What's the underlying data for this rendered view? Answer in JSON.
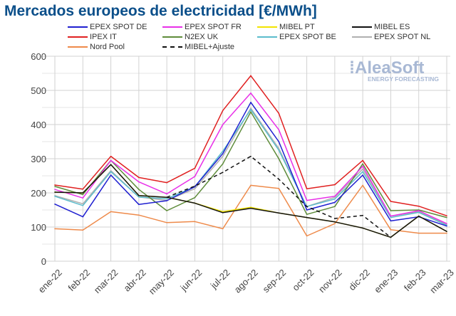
{
  "chart_data": {
    "type": "line",
    "title": "Mercados europeos de electricidad [€/MWh]",
    "xlabel": "",
    "ylabel": "",
    "ylim": [
      0,
      600
    ],
    "yticks": [
      0,
      100,
      200,
      300,
      400,
      500,
      600
    ],
    "grid": true,
    "legend_placement": "top",
    "watermark": {
      "brand": "AleaSoft",
      "tagline": "ENERGY FORECASTING"
    },
    "categories": [
      "ene-22",
      "feb-22",
      "mar-22",
      "abr-22",
      "may-22",
      "jun-22",
      "jul-22",
      "ago-22",
      "sep-22",
      "oct-22",
      "nov-22",
      "dic-22",
      "ene-23",
      "feb-23",
      "mar-23"
    ],
    "series": [
      {
        "name": "EPEX SPOT DE",
        "color": "#1f1fd0",
        "values": [
          167,
          130,
          252,
          166,
          177,
          218,
          315,
          465,
          350,
          150,
          172,
          252,
          118,
          130,
          103
        ]
      },
      {
        "name": "EPEX SPOT FR",
        "color": "#e830e8",
        "values": [
          210,
          185,
          295,
          232,
          197,
          248,
          400,
          492,
          385,
          178,
          190,
          278,
          132,
          148,
          110
        ]
      },
      {
        "name": "MIBEL PT",
        "color": "#f2e400",
        "values": [
          202,
          200,
          283,
          192,
          187,
          170,
          145,
          158,
          141,
          128,
          115,
          97,
          70,
          132,
          87
        ]
      },
      {
        "name": "MIBEL ES",
        "color": "#111111",
        "values": [
          202,
          200,
          283,
          192,
          187,
          170,
          142,
          155,
          141,
          128,
          115,
          97,
          70,
          132,
          87
        ]
      },
      {
        "name": "IPEX IT",
        "color": "#e02020",
        "values": [
          223,
          211,
          307,
          245,
          230,
          272,
          441,
          543,
          433,
          212,
          224,
          295,
          175,
          161,
          133
        ]
      },
      {
        "name": "N2EX UK",
        "color": "#5e8c3a",
        "values": [
          219,
          195,
          295,
          210,
          148,
          186,
          285,
          437,
          300,
          137,
          160,
          285,
          148,
          150,
          128
        ]
      },
      {
        "name": "EPEX SPOT BE",
        "color": "#5bbccc",
        "values": [
          190,
          163,
          262,
          188,
          183,
          218,
          322,
          444,
          325,
          160,
          182,
          262,
          128,
          143,
          105
        ]
      },
      {
        "name": "EPEX SPOT NL",
        "color": "#b0b0b0",
        "values": [
          192,
          168,
          265,
          188,
          178,
          212,
          307,
          448,
          330,
          160,
          187,
          270,
          132,
          145,
          108
        ]
      },
      {
        "name": "Nord Pool",
        "color": "#ee8a4a",
        "values": [
          95,
          91,
          145,
          135,
          113,
          116,
          95,
          222,
          213,
          74,
          110,
          222,
          92,
          82,
          82
        ]
      },
      {
        "name": "MIBEL+Ajuste",
        "color": "#111111",
        "dashed": true,
        "values": [
          null,
          null,
          null,
          null,
          187,
          220,
          260,
          307,
          240,
          160,
          125,
          134,
          70,
          null,
          null
        ]
      }
    ]
  }
}
